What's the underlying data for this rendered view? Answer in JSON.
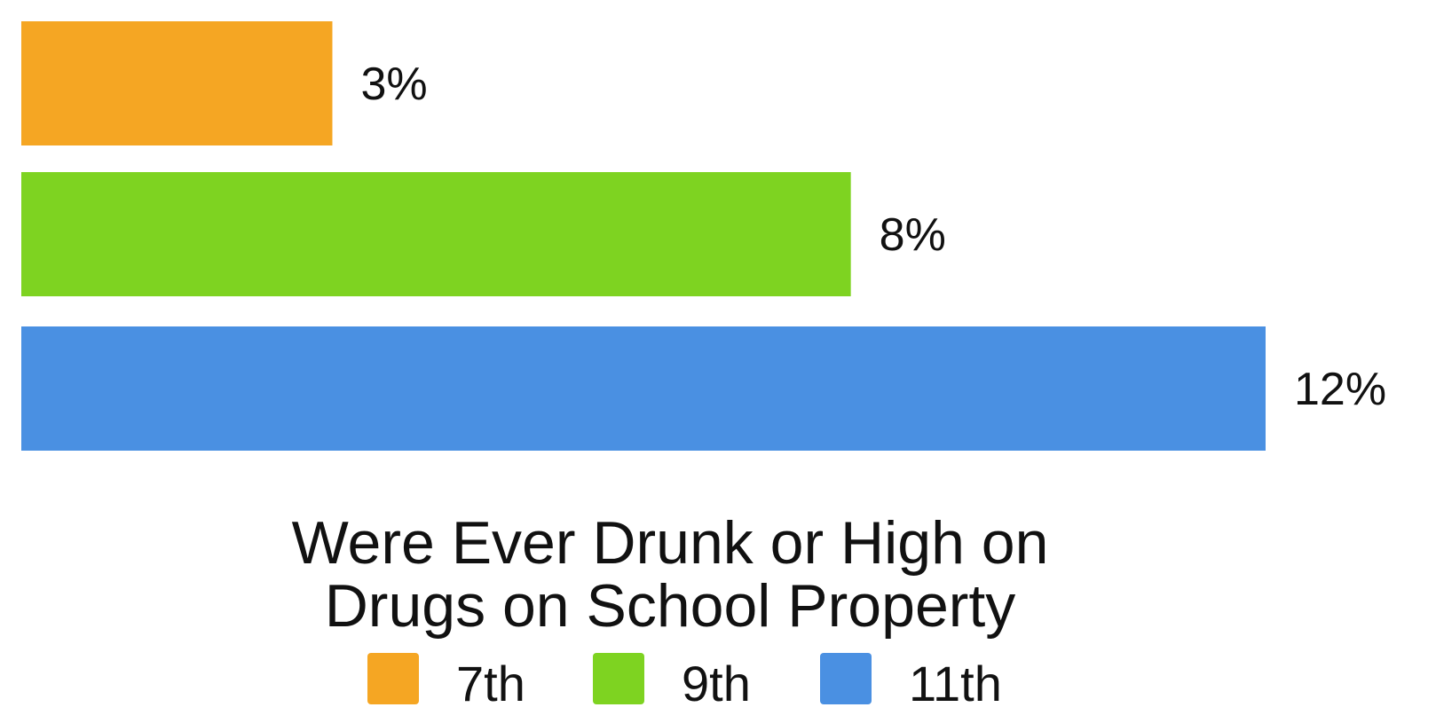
{
  "chart_data": {
    "type": "bar",
    "orientation": "horizontal",
    "title_lines": [
      "Were Ever Drunk or High on",
      "Drugs on School Property"
    ],
    "categories": [
      "7th",
      "9th",
      "11th"
    ],
    "values": [
      3,
      8,
      12
    ],
    "value_labels": [
      "3%",
      "8%",
      "12%"
    ],
    "colors": [
      "#F5A623",
      "#7ED321",
      "#4A90E2"
    ],
    "xlim": [
      0,
      12
    ],
    "xlabel": "",
    "ylabel": "",
    "grid": false,
    "legend_position": "bottom"
  }
}
